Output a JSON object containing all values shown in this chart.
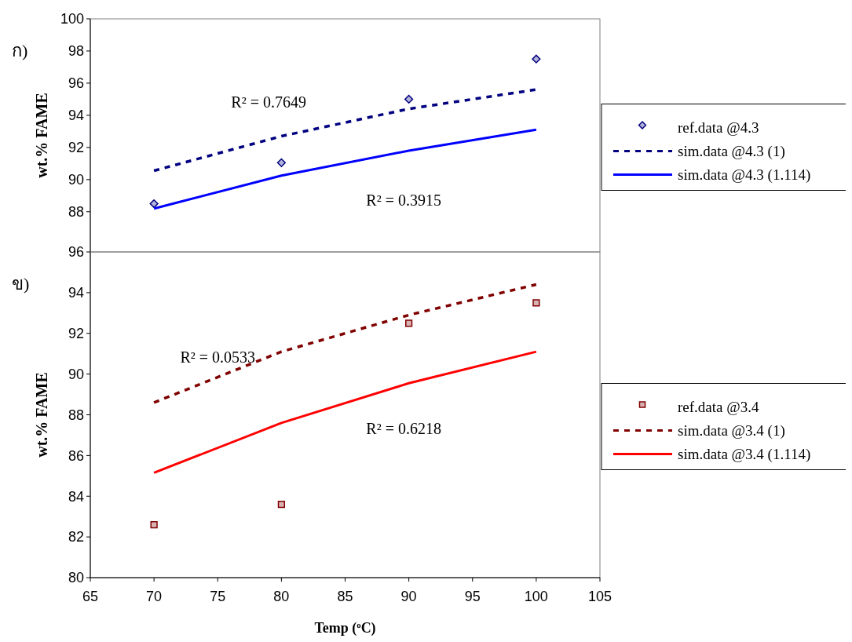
{
  "chart_data": [
    {
      "type": "line",
      "title": "ก)",
      "ylabel": "wt.% FAME",
      "xlim": [
        65,
        105
      ],
      "xticks": [
        65,
        70,
        75,
        80,
        85,
        90,
        95,
        100,
        105
      ],
      "ylim": [
        85.5,
        100
      ],
      "yticks": [
        88,
        90,
        92,
        94,
        96,
        98,
        100
      ],
      "tick_labels": "y",
      "grid": false,
      "legend": "right",
      "x": [
        70,
        80,
        90,
        100
      ],
      "series": [
        {
          "name": "ref.data @4.3",
          "type": "scatter",
          "marker": "diamond",
          "color": "#000080",
          "values": [
            88.5,
            91.05,
            95.0,
            97.5
          ]
        },
        {
          "name": "sim.data @4.3 (1)",
          "type": "line",
          "marker": "none",
          "line_style": "dashed",
          "color": "#000080",
          "values": [
            90.55,
            92.7,
            94.4,
            95.6
          ]
        },
        {
          "name": "sim.data @4.3 (1.114)",
          "type": "line",
          "marker": "none",
          "line_style": "solid",
          "color": "#0000ff",
          "values": [
            88.2,
            90.25,
            91.8,
            93.1
          ]
        }
      ],
      "annotations": [
        "R² = 0.7649",
        "R² = 0.3915"
      ]
    },
    {
      "type": "line",
      "title": "ข)",
      "xlabel": "Temp ($^{o}$C)",
      "ylabel": "wt.% FAME",
      "xlim": [
        65,
        105
      ],
      "xticks": [
        65,
        70,
        75,
        80,
        85,
        90,
        95,
        100,
        105
      ],
      "ylim": [
        80,
        96
      ],
      "yticks": [
        80,
        82,
        84,
        86,
        88,
        90,
        92,
        94,
        96
      ],
      "grid": false,
      "legend": "right",
      "x": [
        70,
        80,
        90,
        100
      ],
      "series": [
        {
          "name": "ref.data @3.4",
          "type": "scatter",
          "marker": "square",
          "color": "#800000",
          "values": [
            82.6,
            83.6,
            92.5,
            93.5
          ]
        },
        {
          "name": "sim.data @3.4 (1)",
          "type": "line",
          "marker": "none",
          "line_style": "dashed",
          "color": "#800000",
          "values": [
            88.6,
            91.1,
            92.9,
            94.4
          ]
        },
        {
          "name": "sim.data @3.4 (1.114)",
          "type": "line",
          "marker": "none",
          "line_style": "solid",
          "color": "#ff0000",
          "values": [
            85.15,
            87.6,
            89.55,
            91.1
          ]
        }
      ],
      "annotations": [
        "R² = 0.0533",
        "R² = 0.6218"
      ]
    }
  ]
}
